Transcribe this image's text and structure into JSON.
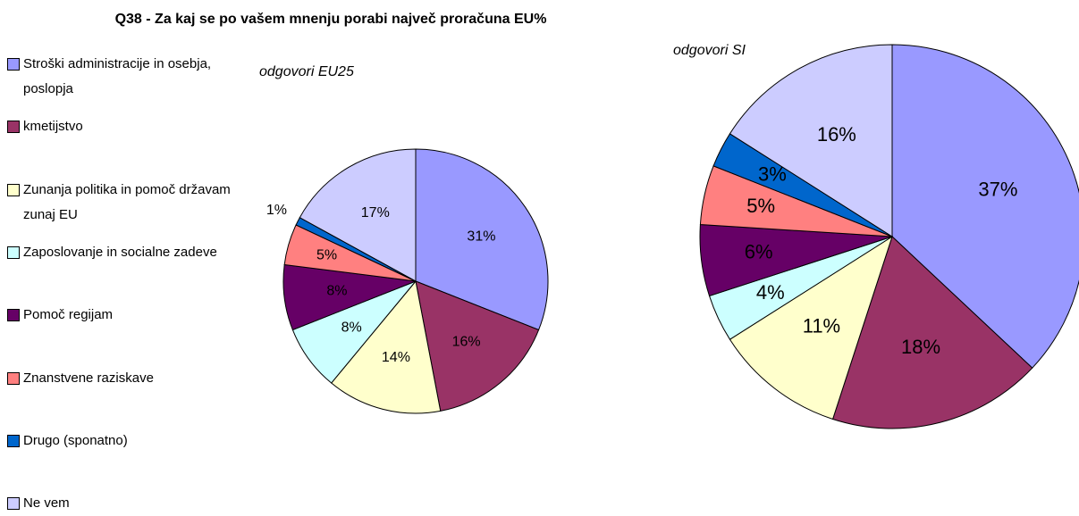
{
  "chart_data": [
    {
      "type": "pie",
      "title": "Q38 - Za kaj se po vašem mnenju porabi največ proračuna EU%",
      "subtitle": "odgovori EU25",
      "categories": [
        "Stroški administracije in osebja, poslopja",
        "kmetijstvo",
        "Zunanja politika in pomoč državam zunaj EU",
        "Zaposlovanje in socialne zadeve",
        "Pomoč regijam",
        "Znanstvene raziskave",
        "Drugo (sponatno)",
        "Ne vem"
      ],
      "colors": [
        "#9999ff",
        "#993366",
        "#ffffcc",
        "#ccffff",
        "#660066",
        "#ff8080",
        "#0066cc",
        "#ccccff"
      ],
      "values": [
        31,
        16,
        14,
        8,
        8,
        5,
        1,
        17
      ],
      "value_labels": [
        "31%",
        "16%",
        "14%",
        "8%",
        "8%",
        "5%",
        "1%",
        "17%"
      ]
    },
    {
      "type": "pie",
      "subtitle": "odgovori SI",
      "values": [
        37,
        18,
        11,
        4,
        6,
        5,
        3,
        16
      ],
      "value_labels": [
        "37%",
        "18%",
        "11%",
        "4%",
        "6%",
        "5%",
        "3%",
        "16%"
      ]
    }
  ]
}
